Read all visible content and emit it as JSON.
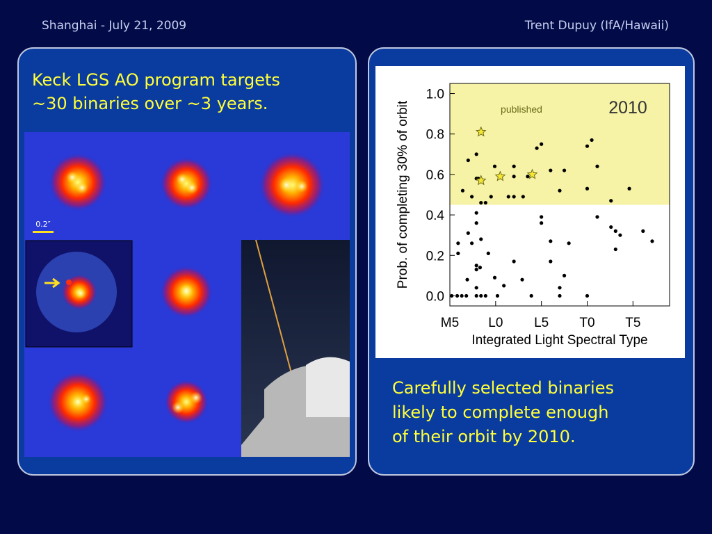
{
  "header": {
    "left": "Shanghai - July 21, 2009",
    "right": "Trent Dupuy (IfA/Hawaii)"
  },
  "left_panel": {
    "text_lines": [
      "Keck LGS AO program targets",
      "~30 binaries over ~3 years."
    ],
    "scale_label": "0.2″"
  },
  "right_panel": {
    "text_lines": [
      "Carefully selected binaries",
      "likely to complete enough",
      "of their orbit by 2010."
    ]
  },
  "chart_data": {
    "type": "scatter",
    "ylabel": "Prob. of completing 30% of orbit",
    "xlabel": "Integrated Light Spectral Type",
    "annotations": [
      "published",
      "2010"
    ],
    "xlim": [
      5,
      29
    ],
    "ylim": [
      -0.05,
      1.05
    ],
    "xticks": [
      {
        "value": 5,
        "label": "M5"
      },
      {
        "value": 10,
        "label": "L0"
      },
      {
        "value": 15,
        "label": "L5"
      },
      {
        "value": 20,
        "label": "T0"
      },
      {
        "value": 25,
        "label": "T5"
      }
    ],
    "yticks": [
      {
        "value": 0,
        "label": "0.0"
      },
      0.2,
      0.4,
      0.6,
      0.8,
      {
        "value": 1,
        "label": "1.0"
      }
    ],
    "shade_ymin": 0.45,
    "shade_color": "#f6f3a6",
    "series": [
      {
        "color": "#000000",
        "marker": "circle",
        "x": [
          5.2,
          5.8,
          6.3,
          6.8,
          5.9,
          5.9,
          6.9,
          7.4,
          7.9,
          7.9,
          7.9,
          7.9,
          7.9,
          7.9,
          8.4,
          8.4,
          8.3,
          8.9,
          9.2,
          9.9,
          10.2,
          10.9,
          12.0,
          12.9,
          13.9,
          15.0,
          15.0,
          16.0,
          16.0,
          17.0,
          17.0,
          17.5,
          18.0,
          20.0,
          21.1,
          22.6,
          23.1,
          23.1,
          23.6,
          26.1,
          27.1,
          7.0,
          6.4,
          7.0,
          7.4,
          7.9,
          7.9,
          8.1,
          8.4,
          8.9,
          9.5,
          9.9,
          11.4,
          12.0,
          12.0,
          12.0,
          13.0,
          13.5,
          14.5,
          15.0,
          16.0,
          17.0,
          17.5,
          20.0,
          20.5,
          20.0,
          21.1,
          22.6,
          24.6
        ],
        "values": [
          0,
          0,
          0,
          0,
          0.21,
          0.26,
          0.08,
          0.26,
          0.41,
          0.36,
          0.15,
          0.13,
          0.04,
          0,
          0.28,
          0,
          0.14,
          0,
          0.21,
          0.09,
          0,
          0.05,
          0.17,
          0.08,
          0,
          0.39,
          0.36,
          0.27,
          0.17,
          0.04,
          0,
          0.1,
          0.26,
          0,
          0.39,
          0.34,
          0.32,
          0.23,
          0.3,
          0.32,
          0.27,
          0.31,
          0.52,
          0.67,
          0.49,
          0.7,
          0.58,
          0.58,
          0.46,
          0.46,
          0.49,
          0.64,
          0.49,
          0.49,
          0.59,
          0.64,
          0.49,
          0.59,
          0.73,
          0.75,
          0.62,
          0.52,
          0.62,
          0.74,
          0.77,
          0.53,
          0.64,
          0.47,
          0.53
        ]
      },
      {
        "color": "#f5e633",
        "marker": "star",
        "x": [
          8.4,
          8.4,
          10.5,
          14.0
        ],
        "values": [
          0.81,
          0.57,
          0.59,
          0.6
        ]
      }
    ]
  }
}
